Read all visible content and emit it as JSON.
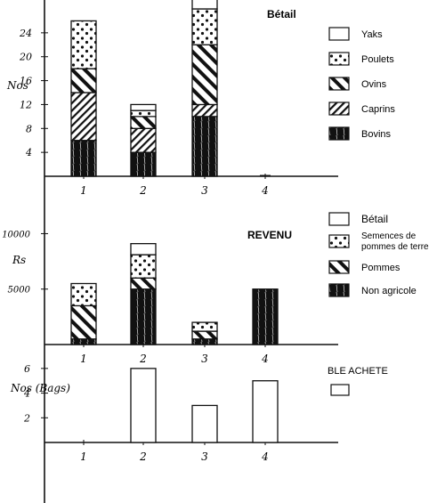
{
  "colors": {
    "ink": "#111111",
    "paper": "#ffffff"
  },
  "chart_data": [
    {
      "type": "bar",
      "stacked": true,
      "title": "Bétail",
      "ylabel": "Nos",
      "categories": [
        "1",
        "2",
        "3",
        "4"
      ],
      "yticks": [
        "4",
        "8",
        "12",
        "16",
        "20",
        "24"
      ],
      "ylim": [
        0,
        28
      ],
      "legend_position": "right",
      "series": [
        {
          "name": "Bovins",
          "values": [
            6,
            4,
            10,
            0
          ]
        },
        {
          "name": "Caprins",
          "values": [
            8,
            4,
            2,
            0
          ]
        },
        {
          "name": "Ovins",
          "values": [
            4,
            2,
            10,
            0
          ]
        },
        {
          "name": "Poulets",
          "values": [
            8,
            1,
            6,
            0
          ]
        },
        {
          "name": "Yaks",
          "values": [
            0,
            1,
            2,
            0
          ]
        }
      ],
      "patterns": [
        "solid",
        "dense-hatch",
        "diag-hatch",
        "dots",
        "blank"
      ]
    },
    {
      "type": "bar",
      "stacked": true,
      "title": "REVENU",
      "ylabel": "Rs",
      "categories": [
        "1",
        "2",
        "3",
        "4"
      ],
      "yticks": [
        "5000",
        "10000"
      ],
      "ylim": [
        0,
        11000
      ],
      "legend_position": "right",
      "series": [
        {
          "name": "Non agricole",
          "values": [
            500,
            5000,
            500,
            5000
          ]
        },
        {
          "name": "Pommes",
          "values": [
            3000,
            1000,
            700,
            0
          ]
        },
        {
          "name": "Semences de pommes de terre",
          "values": [
            2000,
            2100,
            800,
            0
          ]
        },
        {
          "name": "Bétail",
          "values": [
            0,
            1000,
            0,
            0
          ]
        }
      ],
      "legend_order": [
        "Bétail",
        "Semences de pommes de terre",
        "Pommes",
        "Non agricole"
      ],
      "patterns": [
        "solid",
        "diag-hatch",
        "dots",
        "blank"
      ]
    },
    {
      "type": "bar",
      "title": "",
      "ylabel": "Nos (Bags)",
      "categories": [
        "1",
        "2",
        "3",
        "4"
      ],
      "yticks": [
        "2",
        "4",
        "6"
      ],
      "ylim": [
        0,
        7
      ],
      "legend_position": "right",
      "series": [
        {
          "name": "BLE ACHETE",
          "values": [
            0,
            6,
            3,
            5
          ]
        }
      ],
      "patterns": [
        "blank"
      ]
    }
  ]
}
